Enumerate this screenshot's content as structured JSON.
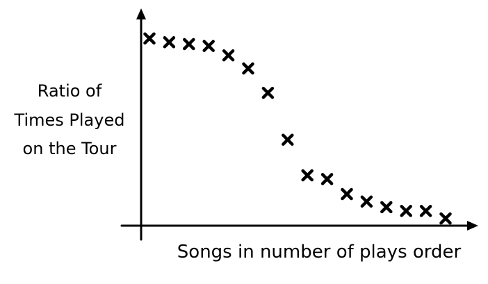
{
  "chart_data": {
    "type": "scatter",
    "title": "",
    "xlabel": "Songs in number of plays order",
    "ylabel_lines": [
      "Ratio of",
      "Times Played",
      "on the Tour"
    ],
    "x_ticks": false,
    "y_ticks": false,
    "grid": false,
    "marker": "x",
    "marker_color": "#000000",
    "axis_color": "#000000",
    "points_note_free": true,
    "x": [
      1,
      2,
      3,
      4,
      5,
      6,
      7,
      8,
      9,
      10,
      11,
      12,
      13,
      14,
      15,
      16
    ],
    "y": [
      0.98,
      0.96,
      0.95,
      0.94,
      0.89,
      0.82,
      0.69,
      0.44,
      0.25,
      0.23,
      0.15,
      0.11,
      0.08,
      0.06,
      0.06,
      0.02
    ]
  }
}
